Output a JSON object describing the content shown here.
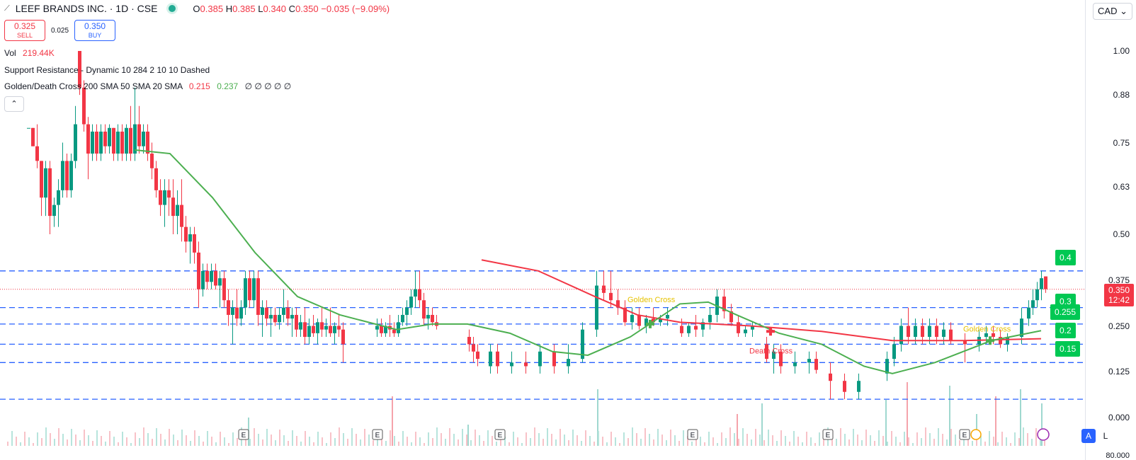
{
  "header": {
    "symbol": "LEEF BRANDS INC. · 1D · CSE",
    "ohlc": {
      "o_label": "O",
      "o": "0.385",
      "h_label": "H",
      "h": "0.385",
      "l_label": "L",
      "l": "0.340",
      "c_label": "C",
      "c": "0.350",
      "chg": "−0.035 (−9.09%)"
    }
  },
  "trade": {
    "sell_price": "0.325",
    "sell_label": "SELL",
    "spread": "0.025",
    "buy_price": "0.350",
    "buy_label": "BUY"
  },
  "indicators": {
    "vol_label": "Vol",
    "vol_value": "219.44K",
    "sr_label": "Support Resistance - Dynamic 10 284 2 10 10 Dashed",
    "gd_label": "Golden/Death Cross 200 SMA 50 SMA 20 SMA",
    "gd_v1": "0.215",
    "gd_v2": "0.237",
    "gd_rest": "∅ ∅ ∅ ∅ ∅"
  },
  "currency": "CAD",
  "price_axis": {
    "ticks": [
      "1.00",
      "0.88",
      "0.75",
      "0.63",
      "0.50",
      "0.375",
      "0.250",
      "0.125",
      "0.000"
    ],
    "current_price": "0.350",
    "countdown": "12:42",
    "last_partial_tick": "80.000"
  },
  "level_tags": [
    "0.4",
    "0.3",
    "0.255",
    "0.2",
    "0.15"
  ],
  "annotations": {
    "golden_cross": "Golden Cross",
    "death_cross": "Death Cross",
    "golden_cross_2": "Golden Cross"
  },
  "earnings_marker": "E",
  "bottom": {
    "a_label": "A",
    "l_label": "L"
  },
  "colors": {
    "up": "#089981",
    "down": "#f23645",
    "sma50": "#f23645",
    "sma20": "#4caf50",
    "level": "#2962ff",
    "tag": "#00c853"
  },
  "chart_data": {
    "type": "candlestick",
    "title": "LEEF BRANDS INC. · 1D · CSE",
    "y_range": [
      0.0,
      1.0
    ],
    "support_resistance_levels": [
      0.4,
      0.3,
      0.255,
      0.2,
      0.15,
      0.05
    ],
    "sma50": [
      [
        680,
        0.43
      ],
      [
        760,
        0.4
      ],
      [
        840,
        0.33
      ],
      [
        900,
        0.28
      ],
      [
        960,
        0.26
      ],
      [
        1060,
        0.25
      ],
      [
        1160,
        0.235
      ],
      [
        1260,
        0.21
      ],
      [
        1360,
        0.21
      ],
      [
        1470,
        0.215
      ]
    ],
    "sma20": [
      [
        190,
        0.73
      ],
      [
        240,
        0.72
      ],
      [
        300,
        0.6
      ],
      [
        360,
        0.45
      ],
      [
        420,
        0.33
      ],
      [
        480,
        0.28
      ],
      [
        560,
        0.24
      ],
      [
        610,
        0.255
      ],
      [
        660,
        0.255
      ],
      [
        720,
        0.23
      ],
      [
        780,
        0.18
      ],
      [
        830,
        0.17
      ],
      [
        890,
        0.22
      ],
      [
        960,
        0.31
      ],
      [
        1000,
        0.315
      ],
      [
        1040,
        0.28
      ],
      [
        1100,
        0.23
      ],
      [
        1160,
        0.2
      ],
      [
        1220,
        0.14
      ],
      [
        1260,
        0.12
      ],
      [
        1320,
        0.15
      ],
      [
        1400,
        0.21
      ],
      [
        1470,
        0.237
      ]
    ],
    "candles": [
      [
        38,
        0.79,
        0.79,
        0.79,
        0.79
      ],
      [
        44,
        0.79,
        0.79,
        0.74,
        0.74
      ],
      [
        50,
        0.74,
        0.8,
        0.68,
        0.7
      ],
      [
        56,
        0.7,
        0.7,
        0.55,
        0.6
      ],
      [
        62,
        0.6,
        0.7,
        0.55,
        0.68
      ],
      [
        68,
        0.68,
        0.7,
        0.5,
        0.55
      ],
      [
        74,
        0.55,
        0.6,
        0.52,
        0.58
      ],
      [
        80,
        0.58,
        0.65,
        0.52,
        0.62
      ],
      [
        86,
        0.62,
        0.75,
        0.6,
        0.7
      ],
      [
        92,
        0.7,
        0.72,
        0.6,
        0.62
      ],
      [
        98,
        0.62,
        0.72,
        0.6,
        0.7
      ],
      [
        104,
        0.7,
        0.85,
        0.68,
        0.8
      ],
      [
        110,
        1.0,
        1.0,
        0.88,
        0.9
      ],
      [
        116,
        0.9,
        0.92,
        0.78,
        0.8
      ],
      [
        122,
        0.8,
        0.82,
        0.65,
        0.72
      ],
      [
        128,
        0.72,
        0.8,
        0.7,
        0.78
      ],
      [
        134,
        0.78,
        0.8,
        0.7,
        0.72
      ],
      [
        140,
        0.72,
        0.8,
        0.7,
        0.78
      ],
      [
        146,
        0.78,
        0.8,
        0.72,
        0.74
      ],
      [
        152,
        0.74,
        0.8,
        0.72,
        0.79
      ],
      [
        158,
        0.79,
        0.79,
        0.7,
        0.72
      ],
      [
        164,
        0.72,
        0.8,
        0.7,
        0.78
      ],
      [
        170,
        0.78,
        0.8,
        0.7,
        0.72
      ],
      [
        176,
        0.72,
        0.8,
        0.7,
        0.79
      ],
      [
        182,
        0.79,
        0.85,
        0.7,
        0.72
      ],
      [
        188,
        0.72,
        0.9,
        0.7,
        0.8
      ],
      [
        194,
        0.8,
        0.85,
        0.72,
        0.74
      ],
      [
        200,
        0.74,
        0.8,
        0.72,
        0.78
      ],
      [
        206,
        0.78,
        0.8,
        0.7,
        0.72
      ],
      [
        212,
        0.72,
        0.75,
        0.65,
        0.68
      ],
      [
        218,
        0.68,
        0.7,
        0.6,
        0.62
      ],
      [
        224,
        0.62,
        0.65,
        0.55,
        0.58
      ],
      [
        230,
        0.58,
        0.65,
        0.52,
        0.62
      ],
      [
        236,
        0.62,
        0.65,
        0.55,
        0.6
      ],
      [
        242,
        0.6,
        0.65,
        0.5,
        0.55
      ],
      [
        248,
        0.55,
        0.62,
        0.5,
        0.58
      ],
      [
        254,
        0.58,
        0.65,
        0.48,
        0.52
      ],
      [
        260,
        0.52,
        0.55,
        0.45,
        0.48
      ],
      [
        266,
        0.48,
        0.52,
        0.42,
        0.5
      ],
      [
        272,
        0.5,
        0.52,
        0.42,
        0.45
      ],
      [
        278,
        0.45,
        0.48,
        0.3,
        0.35
      ],
      [
        284,
        0.35,
        0.42,
        0.33,
        0.4
      ],
      [
        290,
        0.4,
        0.42,
        0.35,
        0.37
      ],
      [
        296,
        0.37,
        0.42,
        0.35,
        0.4
      ],
      [
        302,
        0.4,
        0.42,
        0.35,
        0.36
      ],
      [
        308,
        0.36,
        0.4,
        0.3,
        0.38
      ],
      [
        314,
        0.38,
        0.4,
        0.3,
        0.32
      ],
      [
        320,
        0.32,
        0.35,
        0.25,
        0.28
      ],
      [
        326,
        0.28,
        0.32,
        0.2,
        0.3
      ],
      [
        332,
        0.3,
        0.35,
        0.25,
        0.27
      ],
      [
        338,
        0.27,
        0.32,
        0.25,
        0.3
      ],
      [
        344,
        0.3,
        0.4,
        0.28,
        0.38
      ],
      [
        350,
        0.38,
        0.4,
        0.3,
        0.32
      ],
      [
        356,
        0.32,
        0.4,
        0.3,
        0.38
      ],
      [
        362,
        0.38,
        0.4,
        0.25,
        0.28
      ],
      [
        368,
        0.28,
        0.32,
        0.22,
        0.3
      ],
      [
        374,
        0.3,
        0.32,
        0.25,
        0.27
      ],
      [
        380,
        0.27,
        0.3,
        0.22,
        0.28
      ],
      [
        386,
        0.28,
        0.3,
        0.25,
        0.26
      ],
      [
        392,
        0.26,
        0.3,
        0.24,
        0.28
      ],
      [
        398,
        0.28,
        0.35,
        0.26,
        0.3
      ],
      [
        404,
        0.3,
        0.32,
        0.25,
        0.27
      ],
      [
        410,
        0.27,
        0.3,
        0.22,
        0.28
      ],
      [
        416,
        0.28,
        0.3,
        0.22,
        0.24
      ],
      [
        422,
        0.24,
        0.28,
        0.22,
        0.26
      ],
      [
        428,
        0.26,
        0.3,
        0.2,
        0.22
      ],
      [
        434,
        0.22,
        0.27,
        0.2,
        0.25
      ],
      [
        440,
        0.25,
        0.28,
        0.22,
        0.23
      ],
      [
        446,
        0.23,
        0.27,
        0.2,
        0.26
      ],
      [
        452,
        0.26,
        0.3,
        0.22,
        0.24
      ],
      [
        458,
        0.24,
        0.27,
        0.22,
        0.25
      ],
      [
        464,
        0.25,
        0.3,
        0.22,
        0.23
      ],
      [
        470,
        0.23,
        0.26,
        0.2,
        0.25
      ],
      [
        476,
        0.25,
        0.28,
        0.22,
        0.24
      ],
      [
        482,
        0.24,
        0.26,
        0.15,
        0.2
      ],
      [
        530,
        0.24,
        0.27,
        0.22,
        0.25
      ],
      [
        536,
        0.25,
        0.27,
        0.22,
        0.23
      ],
      [
        542,
        0.23,
        0.26,
        0.22,
        0.25
      ],
      [
        548,
        0.25,
        0.28,
        0.22,
        0.24
      ],
      [
        554,
        0.24,
        0.26,
        0.22,
        0.23
      ],
      [
        560,
        0.23,
        0.28,
        0.22,
        0.26
      ],
      [
        566,
        0.26,
        0.3,
        0.25,
        0.28
      ],
      [
        572,
        0.28,
        0.32,
        0.25,
        0.3
      ],
      [
        578,
        0.3,
        0.35,
        0.28,
        0.33
      ],
      [
        584,
        0.33,
        0.4,
        0.3,
        0.35
      ],
      [
        590,
        0.35,
        0.4,
        0.3,
        0.32
      ],
      [
        596,
        0.32,
        0.34,
        0.25,
        0.27
      ],
      [
        602,
        0.27,
        0.3,
        0.24,
        0.28
      ],
      [
        608,
        0.28,
        0.3,
        0.25,
        0.26
      ],
      [
        614,
        0.26,
        0.28,
        0.24,
        0.25
      ],
      [
        660,
        0.22,
        0.24,
        0.18,
        0.2
      ],
      [
        666,
        0.2,
        0.22,
        0.15,
        0.18
      ],
      [
        672,
        0.18,
        0.2,
        0.14,
        0.16
      ],
      [
        690,
        0.14,
        0.2,
        0.12,
        0.18
      ],
      [
        700,
        0.18,
        0.2,
        0.12,
        0.14
      ],
      [
        720,
        0.14,
        0.18,
        0.12,
        0.15
      ],
      [
        740,
        0.15,
        0.18,
        0.12,
        0.14
      ],
      [
        760,
        0.14,
        0.2,
        0.12,
        0.18
      ],
      [
        780,
        0.18,
        0.2,
        0.12,
        0.14
      ],
      [
        800,
        0.14,
        0.2,
        0.12,
        0.16
      ],
      [
        820,
        0.16,
        0.26,
        0.15,
        0.24
      ],
      [
        840,
        0.24,
        0.4,
        0.22,
        0.36
      ],
      [
        850,
        0.36,
        0.4,
        0.32,
        0.34
      ],
      [
        860,
        0.34,
        0.4,
        0.3,
        0.32
      ],
      [
        870,
        0.32,
        0.35,
        0.28,
        0.3
      ],
      [
        880,
        0.3,
        0.32,
        0.25,
        0.26
      ],
      [
        890,
        0.26,
        0.3,
        0.24,
        0.28
      ],
      [
        900,
        0.28,
        0.3,
        0.24,
        0.25
      ],
      [
        910,
        0.25,
        0.28,
        0.23,
        0.27
      ],
      [
        920,
        0.27,
        0.3,
        0.25,
        0.26
      ],
      [
        930,
        0.26,
        0.28,
        0.25,
        0.27
      ],
      [
        940,
        0.27,
        0.3,
        0.25,
        0.28
      ],
      [
        960,
        0.25,
        0.27,
        0.22,
        0.23
      ],
      [
        970,
        0.23,
        0.26,
        0.22,
        0.25
      ],
      [
        980,
        0.25,
        0.28,
        0.22,
        0.24
      ],
      [
        990,
        0.24,
        0.27,
        0.22,
        0.26
      ],
      [
        1000,
        0.26,
        0.3,
        0.24,
        0.28
      ],
      [
        1010,
        0.28,
        0.35,
        0.26,
        0.33
      ],
      [
        1020,
        0.33,
        0.35,
        0.27,
        0.29
      ],
      [
        1030,
        0.29,
        0.31,
        0.25,
        0.26
      ],
      [
        1040,
        0.26,
        0.28,
        0.22,
        0.23
      ],
      [
        1050,
        0.23,
        0.25,
        0.22,
        0.24
      ],
      [
        1060,
        0.24,
        0.26,
        0.22,
        0.25
      ],
      [
        1080,
        0.2,
        0.22,
        0.15,
        0.16
      ],
      [
        1090,
        0.16,
        0.2,
        0.12,
        0.18
      ],
      [
        1100,
        0.18,
        0.2,
        0.12,
        0.14
      ],
      [
        1120,
        0.14,
        0.18,
        0.12,
        0.15
      ],
      [
        1140,
        0.15,
        0.18,
        0.12,
        0.16
      ],
      [
        1150,
        0.16,
        0.18,
        0.12,
        0.13
      ],
      [
        1170,
        0.12,
        0.15,
        0.05,
        0.1
      ],
      [
        1190,
        0.1,
        0.12,
        0.05,
        0.07
      ],
      [
        1210,
        0.07,
        0.12,
        0.05,
        0.1
      ],
      [
        1250,
        0.12,
        0.18,
        0.1,
        0.16
      ],
      [
        1260,
        0.16,
        0.22,
        0.14,
        0.2
      ],
      [
        1270,
        0.2,
        0.27,
        0.18,
        0.25
      ],
      [
        1280,
        0.25,
        0.3,
        0.2,
        0.22
      ],
      [
        1290,
        0.22,
        0.27,
        0.2,
        0.25
      ],
      [
        1300,
        0.25,
        0.27,
        0.2,
        0.22
      ],
      [
        1310,
        0.22,
        0.27,
        0.2,
        0.25
      ],
      [
        1320,
        0.25,
        0.27,
        0.2,
        0.22
      ],
      [
        1330,
        0.22,
        0.26,
        0.2,
        0.24
      ],
      [
        1340,
        0.24,
        0.26,
        0.2,
        0.21
      ],
      [
        1360,
        0.21,
        0.23,
        0.15,
        0.2
      ],
      [
        1380,
        0.2,
        0.24,
        0.18,
        0.22
      ],
      [
        1390,
        0.22,
        0.25,
        0.2,
        0.23
      ],
      [
        1400,
        0.23,
        0.25,
        0.2,
        0.22
      ],
      [
        1410,
        0.22,
        0.24,
        0.19,
        0.2
      ],
      [
        1420,
        0.2,
        0.23,
        0.18,
        0.22
      ],
      [
        1440,
        0.22,
        0.3,
        0.2,
        0.27
      ],
      [
        1450,
        0.27,
        0.32,
        0.25,
        0.3
      ],
      [
        1456,
        0.3,
        0.35,
        0.28,
        0.32
      ],
      [
        1462,
        0.32,
        0.37,
        0.3,
        0.35
      ],
      [
        1468,
        0.35,
        0.4,
        0.32,
        0.38
      ],
      [
        1474,
        0.385,
        0.385,
        0.34,
        0.35
      ]
    ]
  }
}
